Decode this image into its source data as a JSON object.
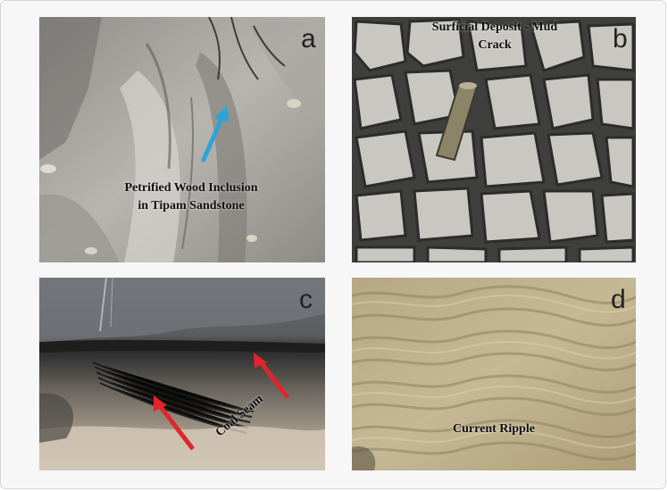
{
  "panels": [
    {
      "letter": "a",
      "caption_line1": "Petrified Wood Inclusion",
      "caption_line2": "in Tipam Sandstone"
    },
    {
      "letter": "b",
      "caption_line1": "Surficial Deposit - Mud",
      "caption_line2": "Crack"
    },
    {
      "letter": "c",
      "caption_line1": "Coal Seam"
    },
    {
      "letter": "d",
      "caption_line1": "Current Ripple"
    }
  ],
  "colors": {
    "arrow_blue": "#2ea3d6",
    "arrow_red": "#e0262b",
    "background": "#f7f7f7"
  }
}
